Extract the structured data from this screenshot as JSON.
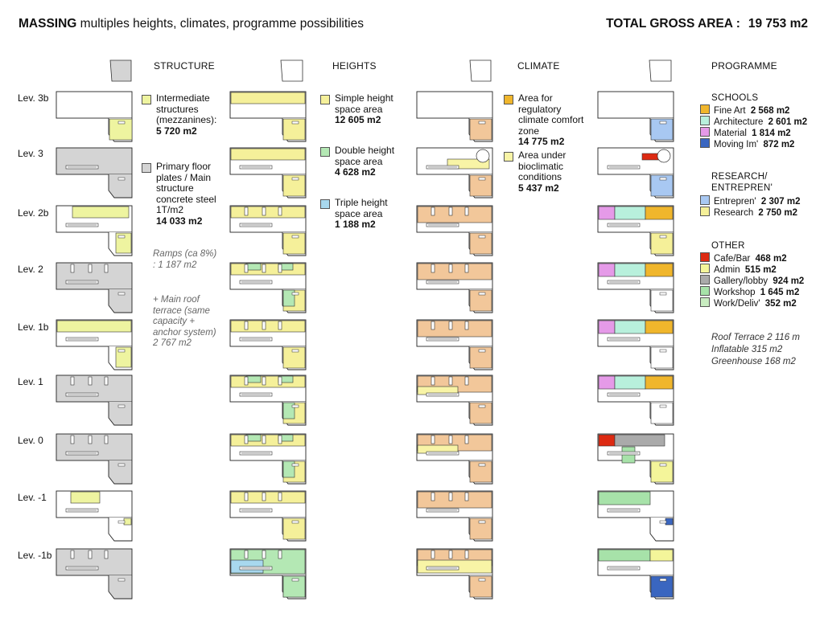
{
  "title": {
    "bold": "MASSING",
    "rest": "multiples heights, climates, programme possibilities"
  },
  "total": {
    "label": "TOTAL GROSS AREA :",
    "value": "19 753 m2"
  },
  "columns": {
    "structure": "STRUCTURE",
    "heights": "HEIGHTS",
    "climate": "CLIMATE",
    "programme": "PROGRAMME"
  },
  "levels": [
    "Lev. 3b",
    "Lev. 3",
    "Lev. 2b",
    "Lev. 2",
    "Lev. 1b",
    "Lev. 1",
    "Lev. 0",
    "Lev. -1",
    "Lev. -1b"
  ],
  "structure_legend": {
    "intermediate": {
      "label": "Intermediate structures (mezzanines):",
      "value": "5 720 m2"
    },
    "primary": {
      "label": "Primary floor plates / Main structure concrete steel 1T/m2",
      "value": "14 033 m2"
    },
    "ramps": "Ramps (ca 8%) : 1 187 m2",
    "roof": "+ Main roof terrace (same capacity + anchor system) 2 767 m2"
  },
  "heights_legend": {
    "simple": {
      "label": "Simple height space area",
      "value": "12 605 m2"
    },
    "double": {
      "label": "Double height space area",
      "value": "4 628 m2"
    },
    "triple": {
      "label": "Triple height space area",
      "value": "1 188 m2"
    }
  },
  "climate_legend": {
    "regulatory": {
      "label": "Area for regulatory climate comfort zone",
      "value": "14 775 m2"
    },
    "bioclimatic": {
      "label": "Area under bioclimatic conditions",
      "value": "5 437 m2"
    }
  },
  "programme": {
    "schools_head": "SCHOOLS",
    "schools": [
      {
        "label": "Fine Art",
        "value": "2 568 m2"
      },
      {
        "label": "Architecture",
        "value": "2 601 m2"
      },
      {
        "label": "Material",
        "value": "1 814 m2"
      },
      {
        "label": "Moving Im'",
        "value": "872 m2"
      }
    ],
    "research_head": "RESEARCH/ ENTREPREN'",
    "research": [
      {
        "label": "Entrepren'",
        "value": "2 307 m2"
      },
      {
        "label": "Research",
        "value": "2 750 m2"
      }
    ],
    "other_head": "OTHER",
    "other": [
      {
        "label": "Cafe/Bar",
        "value": "468 m2"
      },
      {
        "label": "Admin",
        "value": "515 m2"
      },
      {
        "label": "Gallery/lobby",
        "value": "924 m2"
      },
      {
        "label": "Workshop",
        "value": "1 645 m2"
      },
      {
        "label": "Work/Deliv'",
        "value": "352 m2"
      }
    ],
    "roof_notes": [
      "Roof Terrace  2 116 m",
      "Inflatable  315 m2",
      "Greenhouse  168 m2"
    ]
  },
  "colors": {
    "structure_grey": "#d4d4d4",
    "mezzanine": "#eef4a0",
    "simple": "#f5f09a",
    "double": "#b4e8b4",
    "triple": "#a8d8ee",
    "regulatory": "#f2c79a",
    "bioclimatic": "#f8f4a6",
    "fine_art": "#f0b62c",
    "architecture": "#b8f0dc",
    "material": "#e59ae8",
    "moving": "#3a66c0",
    "entrepren": "#a8c8f2",
    "research": "#f5f099",
    "cafe": "#dd2a12",
    "admin": "#f4f59a",
    "gallery": "#aaaaaa",
    "workshop": "#a7e2a9",
    "work_deliv": "#c8ecc0"
  }
}
